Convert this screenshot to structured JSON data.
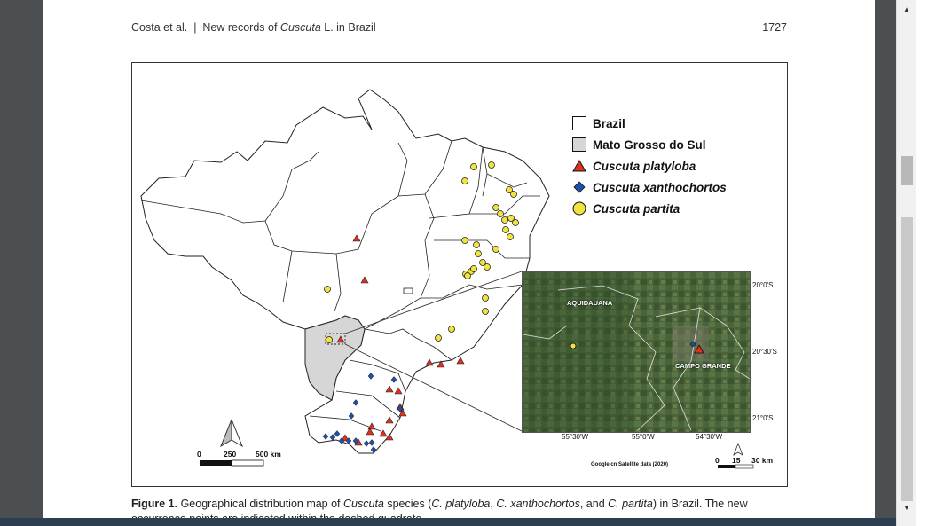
{
  "header": {
    "left_authors": "Costa et al.",
    "left_sep": "|",
    "left_title_pre": "New records of ",
    "left_title_italic": "Cuscuta",
    "left_title_post": " L. in Brazil",
    "page_number": "1727"
  },
  "legend": {
    "items": [
      {
        "label": "Brazil",
        "italic": false,
        "symbol": "white-square"
      },
      {
        "label": "Mato Grosso do Sul",
        "italic": false,
        "symbol": "grey-square"
      },
      {
        "label": "Cuscuta platyloba",
        "italic": true,
        "symbol": "red-triangle"
      },
      {
        "label": "Cuscuta xanthochortos",
        "italic": true,
        "symbol": "blue-diamond"
      },
      {
        "label": "Cuscuta partita",
        "italic": true,
        "symbol": "yellow-circle"
      }
    ]
  },
  "scale_main": {
    "zero": "0",
    "mid": "250",
    "end": "500 km"
  },
  "inset": {
    "labels": {
      "aquidauana": "AQUIDAUANA",
      "campo_grande": "CAMPO GRANDE"
    },
    "lat_ticks": [
      "20°0'S",
      "20°30'S",
      "21°0'S"
    ],
    "lon_ticks": [
      "55°30'W",
      "55°0'W",
      "54°30'W"
    ],
    "credit": "Google.cn Satellite data (2020)",
    "scale": {
      "zero": "0",
      "mid": "15",
      "end": "30 km"
    }
  },
  "caption": {
    "fig_label": "Figure 1.",
    "text_1": " Geographical distribution map of ",
    "genus": "Cuscuta",
    "text_2": " species (",
    "sp1": "C. platyloba",
    "sep1": ", ",
    "sp2": "C. xanthochortos",
    "sep2": ", and ",
    "sp3": "C. partita",
    "text_3": ") in Brazil. The new occurrence points are indicated within the dashed quadrate."
  },
  "colors": {
    "platyloba": "#e03020",
    "xanthochortos": "#1f4fa8",
    "partita": "#f2e340",
    "mato_grosso": "#d6d6d6",
    "satellite": "#3f5a32"
  }
}
